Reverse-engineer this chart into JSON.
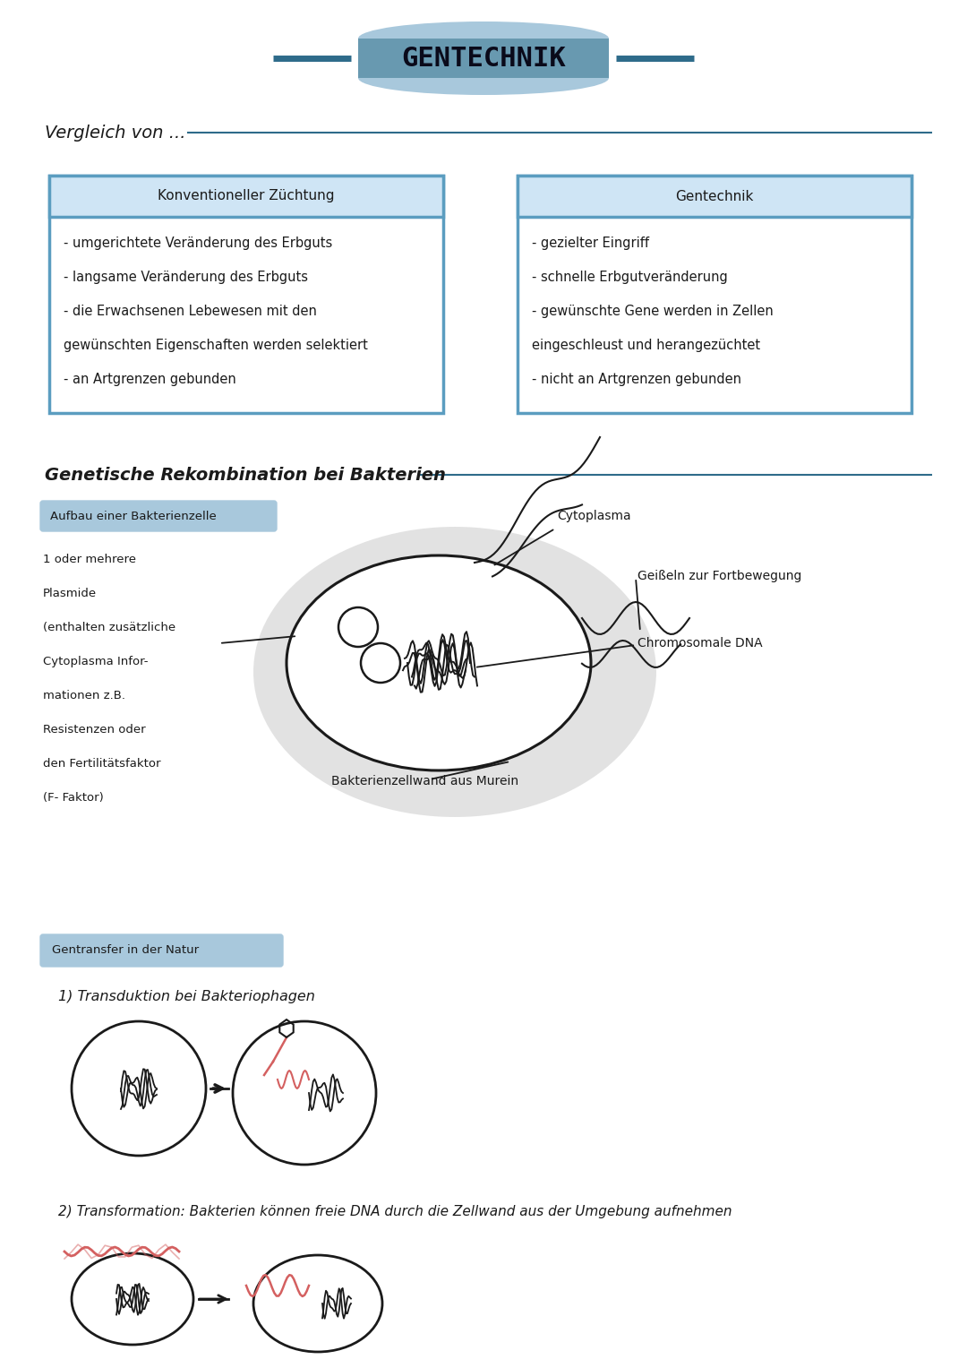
{
  "bg_color": "#ffffff",
  "title_text": "GENTECHNIK",
  "title_color": "#0a0a1a",
  "title_bg_dark": "#6899b0",
  "title_bg_light": "#a8c8dc",
  "section_line_color": "#2e6b8a",
  "section1_title": "Vergleich von ...",
  "box1_header": "Konventioneller Züchtung",
  "box1_lines": [
    "- umgerichtete Veränderung des Erbguts",
    "- langsame Veränderung des Erbguts",
    "- die Erwachsenen Lebewesen mit den",
    "gewünschten Eigenschaften werden selektiert",
    "- an Artgrenzen gebunden"
  ],
  "box2_header": "Gentechnik",
  "box2_lines": [
    "- gezielter Eingriff",
    "- schnelle Erbgutveränderung",
    "- gewünschte Gene werden in Zellen",
    "eingeschleust und herangezüchtet",
    "- nicht an Artgrenzen gebunden"
  ],
  "box_border_color": "#5b9dc0",
  "box_header_bg": "#cfe5f5",
  "section2_title": "Genetische Rekombination bei Bakterien",
  "bakterien_label": "Aufbau einer Bakterienzelle",
  "bakterien_label_bg": "#a8c8dc",
  "label_cytoplasma": "Cytoplasma",
  "label_geisseln": "Geißeln zur Fortbewegung",
  "label_chromosomal": "Chromosomale DNA",
  "label_zellwand": "Bakterienzellwand aus Murein",
  "label_plasmide_lines": [
    "1 oder mehrere",
    "Plasmide",
    "(enthalten zusätzliche",
    "Cytoplasma Infor-",
    "mationen z.B.",
    "Resistenzen oder",
    "den Fertilitätsfaktor",
    "(F- Faktor)"
  ],
  "section3_label": "Gentransfer in der Natur",
  "section3_label_bg": "#a8c8dc",
  "transduktion_text": "1) Transduktion bei Bakteriophagen",
  "transformation_text": "2) Transformation: Bakterien können freie DNA durch die Zellwand aus der Umgebung aufnehmen",
  "arrow_color": "#1a1a1a",
  "cell_color": "#1a1a1a",
  "dna_red": "#d46060",
  "shadow_color": "#d0d0d0"
}
